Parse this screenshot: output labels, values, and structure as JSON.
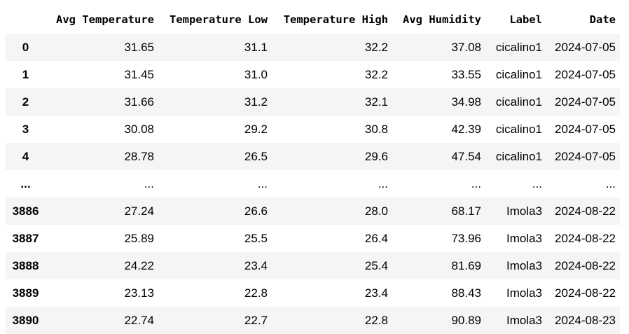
{
  "table": {
    "columns": [
      "",
      "Avg Temperature",
      "Temperature Low",
      "Temperature High",
      "Avg Humidity",
      "Label",
      "Date"
    ],
    "rows": [
      {
        "index": "0",
        "cells": [
          "31.65",
          "31.1",
          "32.2",
          "37.08",
          "cicalino1",
          "2024-07-05"
        ]
      },
      {
        "index": "1",
        "cells": [
          "31.45",
          "31.0",
          "32.2",
          "33.55",
          "cicalino1",
          "2024-07-05"
        ]
      },
      {
        "index": "2",
        "cells": [
          "31.66",
          "31.2",
          "32.1",
          "34.98",
          "cicalino1",
          "2024-07-05"
        ]
      },
      {
        "index": "3",
        "cells": [
          "30.08",
          "29.2",
          "30.8",
          "42.39",
          "cicalino1",
          "2024-07-05"
        ]
      },
      {
        "index": "4",
        "cells": [
          "28.78",
          "26.5",
          "29.6",
          "47.54",
          "cicalino1",
          "2024-07-05"
        ]
      },
      {
        "index": "...",
        "cells": [
          "...",
          "...",
          "...",
          "...",
          "...",
          "..."
        ]
      },
      {
        "index": "3886",
        "cells": [
          "27.24",
          "26.6",
          "28.0",
          "68.17",
          "Imola3",
          "2024-08-22"
        ]
      },
      {
        "index": "3887",
        "cells": [
          "25.89",
          "25.5",
          "26.4",
          "73.96",
          "Imola3",
          "2024-08-22"
        ]
      },
      {
        "index": "3888",
        "cells": [
          "24.22",
          "23.4",
          "25.4",
          "81.69",
          "Imola3",
          "2024-08-22"
        ]
      },
      {
        "index": "3889",
        "cells": [
          "23.13",
          "22.8",
          "23.4",
          "88.43",
          "Imola3",
          "2024-08-22"
        ]
      },
      {
        "index": "3890",
        "cells": [
          "22.74",
          "22.7",
          "22.8",
          "90.89",
          "Imola3",
          "2024-08-23"
        ]
      }
    ]
  }
}
